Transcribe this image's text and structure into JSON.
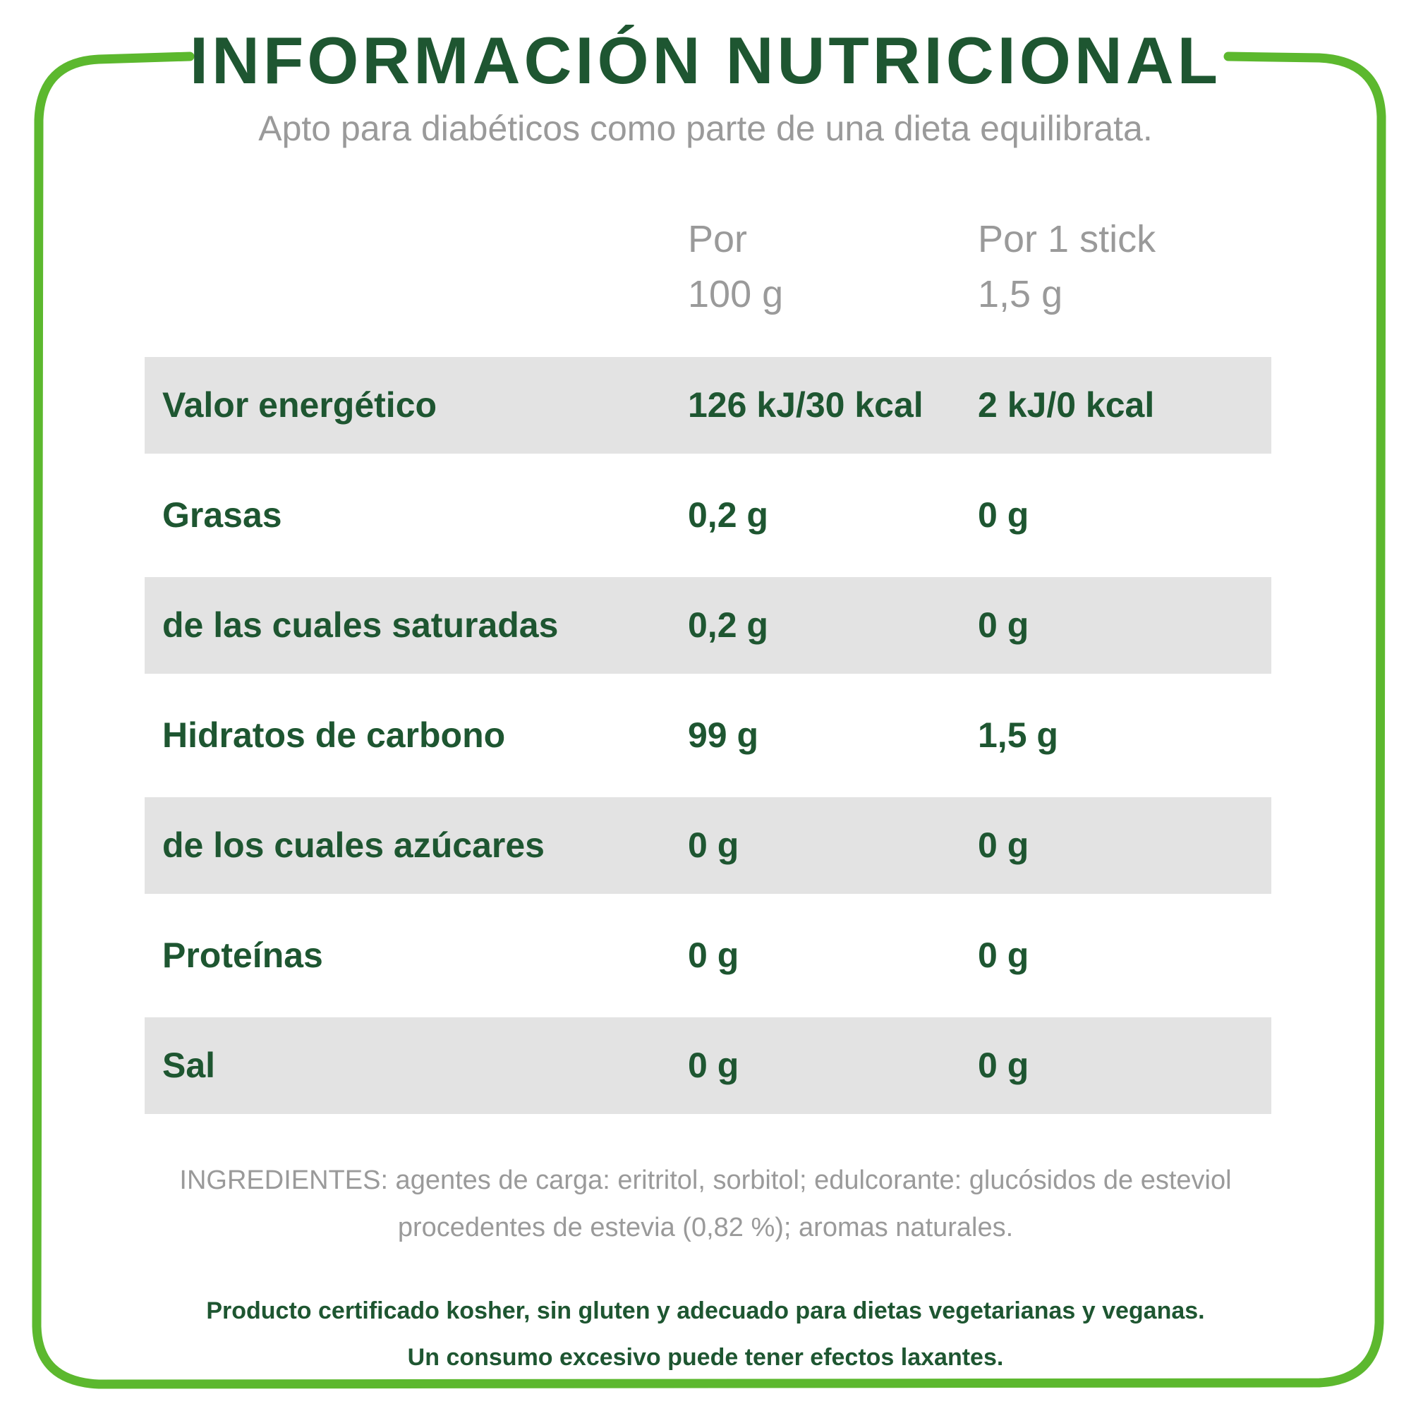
{
  "header": {
    "title": "INFORMACIÓN NUTRICIONAL",
    "subtitle": "Apto para diabéticos como parte de una dieta equilibrata."
  },
  "table": {
    "columns": [
      [
        "Por",
        "100 g"
      ],
      [
        "Por 1 stick",
        "1,5 g"
      ]
    ],
    "rows": [
      [
        "Valor energético",
        "126 kJ/30 kcal",
        "2 kJ/0 kcal"
      ],
      [
        "Grasas",
        "0,2 g",
        "0 g"
      ],
      [
        "de las cuales saturadas",
        "0,2 g",
        "0 g"
      ],
      [
        "Hidratos de carbono",
        "99 g",
        "1,5 g"
      ],
      [
        "de los cuales azúcares",
        "0 g",
        "0 g"
      ],
      [
        "Proteínas",
        "0 g",
        "0 g"
      ],
      [
        "Sal",
        "0 g",
        "0 g"
      ]
    ]
  },
  "ingredients": "INGREDIENTES: agentes de carga: eritritol, sorbitol; edulcorante: glucósidos de esteviol procedentes de estevia (0,82 %); aromas naturales.",
  "footer": [
    "Producto certificado kosher, sin gluten y adecuado para dietas vegetarianas y veganas.",
    "Un consumo excesivo puede tener efectos laxantes."
  ]
}
